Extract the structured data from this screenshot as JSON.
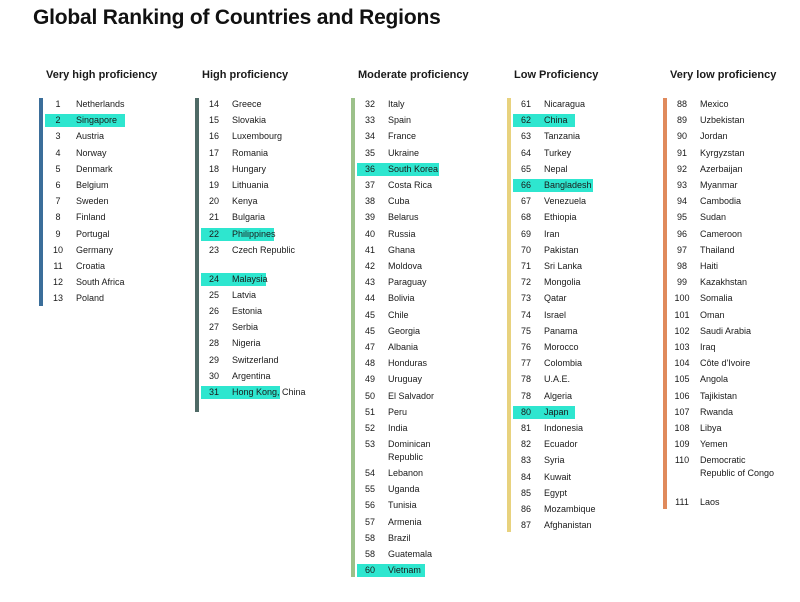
{
  "page": {
    "title": "Global Ranking of Countries and Regions"
  },
  "chart_data": {
    "type": "table",
    "title": "Global Ranking of Countries and Regions",
    "columns": [
      {
        "name": "Very high proficiency",
        "color": "#3b6e9a",
        "entries": [
          {
            "rank": "1",
            "country": "Netherlands"
          },
          {
            "rank": "2",
            "country": "Singapore",
            "highlight": true
          },
          {
            "rank": "3",
            "country": "Austria"
          },
          {
            "rank": "4",
            "country": "Norway"
          },
          {
            "rank": "5",
            "country": "Denmark"
          },
          {
            "rank": "6",
            "country": "Belgium"
          },
          {
            "rank": "7",
            "country": "Sweden"
          },
          {
            "rank": "8",
            "country": "Finland"
          },
          {
            "rank": "9",
            "country": "Portugal"
          },
          {
            "rank": "10",
            "country": "Germany"
          },
          {
            "rank": "11",
            "country": "Croatia"
          },
          {
            "rank": "12",
            "country": "South Africa"
          },
          {
            "rank": "13",
            "country": "Poland"
          }
        ]
      },
      {
        "name": "High proficiency",
        "color": "#4f6a66",
        "entries": [
          {
            "rank": "14",
            "country": "Greece"
          },
          {
            "rank": "15",
            "country": "Slovakia"
          },
          {
            "rank": "16",
            "country": "Luxembourg"
          },
          {
            "rank": "17",
            "country": "Romania"
          },
          {
            "rank": "18",
            "country": "Hungary"
          },
          {
            "rank": "19",
            "country": "Lithuania"
          },
          {
            "rank": "20",
            "country": "Kenya"
          },
          {
            "rank": "21",
            "country": "Bulgaria"
          },
          {
            "rank": "22",
            "country": "Philippines",
            "highlight": true
          },
          {
            "rank": "23",
            "country": "Czech Republic"
          },
          {
            "rank": "24",
            "country": "Malaysia",
            "highlight": true
          },
          {
            "rank": "25",
            "country": "Latvia"
          },
          {
            "rank": "26",
            "country": "Estonia"
          },
          {
            "rank": "27",
            "country": "Serbia"
          },
          {
            "rank": "28",
            "country": "Nigeria"
          },
          {
            "rank": "29",
            "country": "Switzerland"
          },
          {
            "rank": "30",
            "country": "Argentina"
          },
          {
            "rank": "31",
            "country": "Hong Kong, China",
            "highlight": true
          }
        ]
      },
      {
        "name": "Moderate proficiency",
        "color": "#9cc18a",
        "entries": [
          {
            "rank": "32",
            "country": "Italy"
          },
          {
            "rank": "33",
            "country": "Spain"
          },
          {
            "rank": "34",
            "country": "France"
          },
          {
            "rank": "35",
            "country": "Ukraine"
          },
          {
            "rank": "36",
            "country": "South Korea",
            "highlight": true
          },
          {
            "rank": "37",
            "country": "Costa Rica"
          },
          {
            "rank": "38",
            "country": "Cuba"
          },
          {
            "rank": "39",
            "country": "Belarus"
          },
          {
            "rank": "40",
            "country": "Russia"
          },
          {
            "rank": "41",
            "country": "Ghana"
          },
          {
            "rank": "42",
            "country": "Moldova"
          },
          {
            "rank": "43",
            "country": "Paraguay"
          },
          {
            "rank": "44",
            "country": "Bolivia"
          },
          {
            "rank": "45",
            "country": "Chile"
          },
          {
            "rank": "45",
            "country": "Georgia"
          },
          {
            "rank": "47",
            "country": "Albania"
          },
          {
            "rank": "48",
            "country": "Honduras"
          },
          {
            "rank": "49",
            "country": "Uruguay"
          },
          {
            "rank": "50",
            "country": "El Salvador"
          },
          {
            "rank": "51",
            "country": "Peru"
          },
          {
            "rank": "52",
            "country": "India"
          },
          {
            "rank": "53",
            "country": "Dominican Republic"
          },
          {
            "rank": "54",
            "country": "Lebanon"
          },
          {
            "rank": "55",
            "country": "Uganda"
          },
          {
            "rank": "56",
            "country": "Tunisia"
          },
          {
            "rank": "57",
            "country": "Armenia"
          },
          {
            "rank": "58",
            "country": "Brazil"
          },
          {
            "rank": "58",
            "country": "Guatemala"
          },
          {
            "rank": "60",
            "country": "Vietnam",
            "highlight": true
          }
        ]
      },
      {
        "name": "Low Proficiency",
        "color": "#e8d27e",
        "entries": [
          {
            "rank": "61",
            "country": "Nicaragua"
          },
          {
            "rank": "62",
            "country": "China",
            "highlight": true
          },
          {
            "rank": "63",
            "country": "Tanzania"
          },
          {
            "rank": "64",
            "country": "Turkey"
          },
          {
            "rank": "65",
            "country": "Nepal"
          },
          {
            "rank": "66",
            "country": "Bangladesh",
            "highlight": true
          },
          {
            "rank": "67",
            "country": "Venezuela"
          },
          {
            "rank": "68",
            "country": "Ethiopia"
          },
          {
            "rank": "69",
            "country": "Iran"
          },
          {
            "rank": "70",
            "country": "Pakistan"
          },
          {
            "rank": "71",
            "country": "Sri Lanka"
          },
          {
            "rank": "72",
            "country": "Mongolia"
          },
          {
            "rank": "73",
            "country": "Qatar"
          },
          {
            "rank": "74",
            "country": "Israel"
          },
          {
            "rank": "75",
            "country": "Panama"
          },
          {
            "rank": "76",
            "country": "Morocco"
          },
          {
            "rank": "77",
            "country": "Colombia"
          },
          {
            "rank": "78",
            "country": "U.A.E."
          },
          {
            "rank": "78",
            "country": "Algeria"
          },
          {
            "rank": "80",
            "country": "Japan",
            "highlight": true
          },
          {
            "rank": "81",
            "country": "Indonesia"
          },
          {
            "rank": "82",
            "country": "Ecuador"
          },
          {
            "rank": "83",
            "country": "Syria"
          },
          {
            "rank": "84",
            "country": "Kuwait"
          },
          {
            "rank": "85",
            "country": "Egypt"
          },
          {
            "rank": "86",
            "country": "Mozambique"
          },
          {
            "rank": "87",
            "country": "Afghanistan"
          }
        ]
      },
      {
        "name": "Very low proficiency",
        "color": "#e08a5c",
        "entries": [
          {
            "rank": "88",
            "country": "Mexico"
          },
          {
            "rank": "89",
            "country": "Uzbekistan"
          },
          {
            "rank": "90",
            "country": "Jordan"
          },
          {
            "rank": "91",
            "country": "Kyrgyzstan"
          },
          {
            "rank": "92",
            "country": "Azerbaijan"
          },
          {
            "rank": "93",
            "country": "Myanmar"
          },
          {
            "rank": "94",
            "country": "Cambodia"
          },
          {
            "rank": "95",
            "country": "Sudan"
          },
          {
            "rank": "96",
            "country": "Cameroon"
          },
          {
            "rank": "97",
            "country": "Thailand"
          },
          {
            "rank": "98",
            "country": "Haiti"
          },
          {
            "rank": "99",
            "country": "Kazakhstan"
          },
          {
            "rank": "100",
            "country": "Somalia"
          },
          {
            "rank": "101",
            "country": "Oman"
          },
          {
            "rank": "102",
            "country": "Saudi Arabia"
          },
          {
            "rank": "103",
            "country": "Iraq"
          },
          {
            "rank": "104",
            "country": "Côte d'Ivoire"
          },
          {
            "rank": "105",
            "country": "Angola"
          },
          {
            "rank": "106",
            "country": "Tajikistan"
          },
          {
            "rank": "107",
            "country": "Rwanda"
          },
          {
            "rank": "108",
            "country": "Libya"
          },
          {
            "rank": "109",
            "country": "Yemen"
          },
          {
            "rank": "110",
            "country": "Democratic Republic of Congo"
          },
          {
            "rank": "111",
            "country": "Laos"
          }
        ]
      }
    ]
  }
}
